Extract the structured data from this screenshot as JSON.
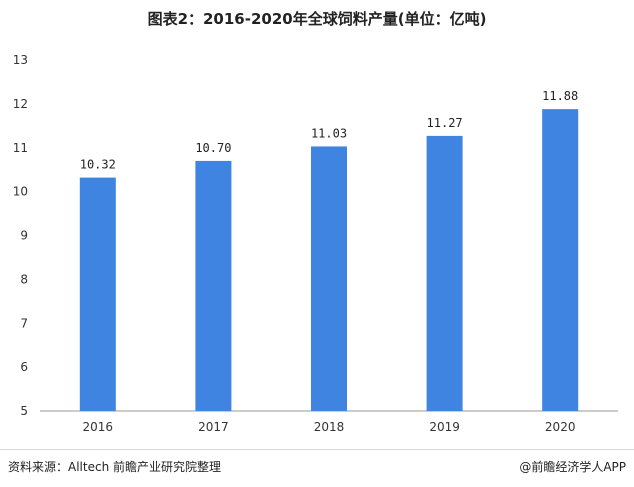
{
  "title": "图表2：2016-2020年全球饲料产量(单位：亿吨)",
  "source": "资料来源：Alltech 前瞻产业研究院整理",
  "credit": "@前瞻经济学人APP",
  "colors": {
    "bar": "#3F84E0",
    "axis": "#999999"
  },
  "chart_data": {
    "type": "bar",
    "title": "图表2：2016-2020年全球饲料产量(单位：亿吨)",
    "categories": [
      "2016",
      "2017",
      "2018",
      "2019",
      "2020"
    ],
    "values": [
      10.32,
      10.7,
      11.03,
      11.27,
      11.88
    ],
    "data_labels": [
      "10.32",
      "10.70",
      "11.03",
      "11.27",
      "11.88"
    ],
    "yticks": [
      5,
      6,
      7,
      8,
      9,
      10,
      11,
      12,
      13
    ],
    "ylim": [
      5,
      13
    ],
    "xlabel": "",
    "ylabel": "",
    "grid": false
  }
}
